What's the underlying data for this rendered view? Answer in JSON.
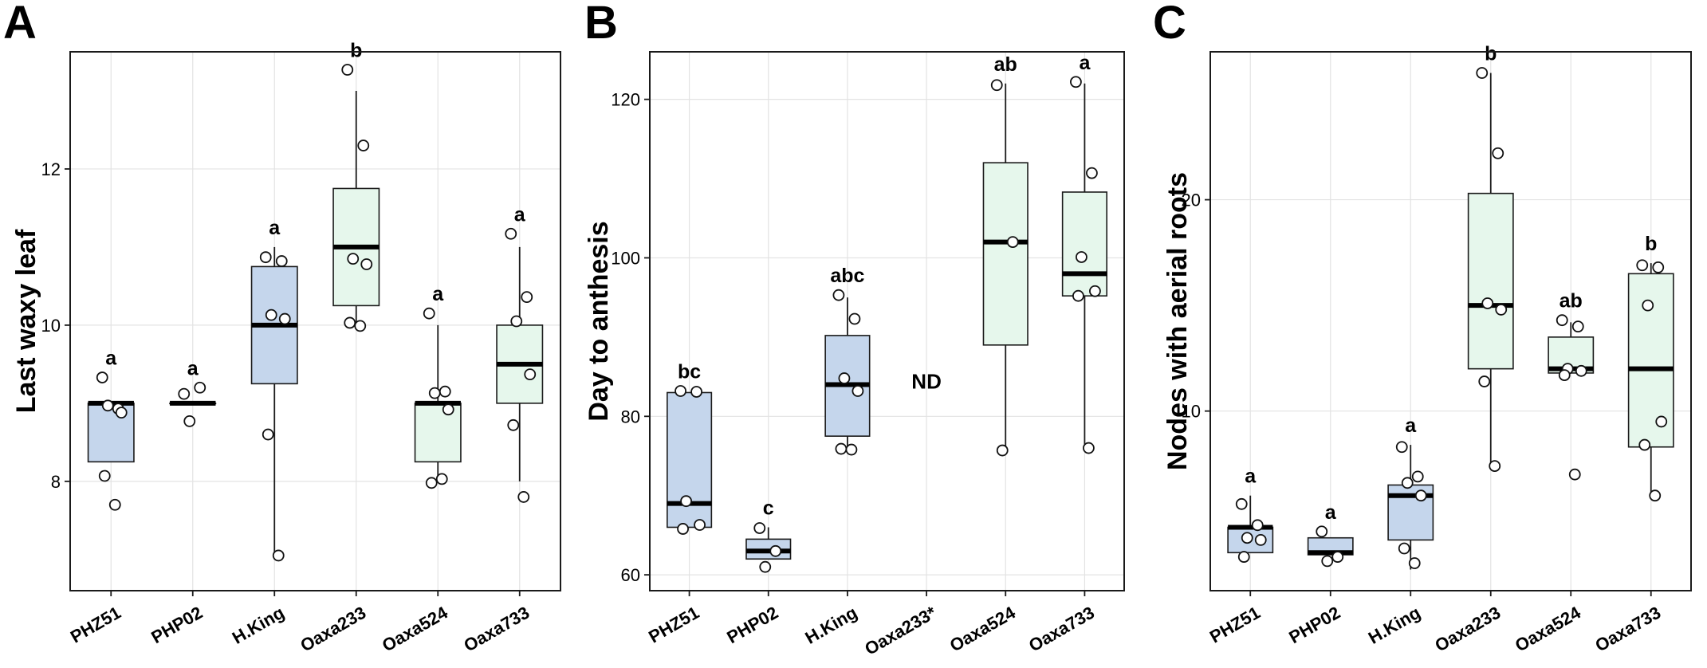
{
  "colors": {
    "blue_fill": "#c5d6ec",
    "green_fill": "#e6f7ec",
    "point_fill": "#ffffff"
  },
  "chart_data": [
    {
      "type": "box",
      "panel_label": "A",
      "title": "",
      "xlabel": "",
      "ylabel": "Last waxy leaf",
      "ylim": [
        6.6,
        13.5
      ],
      "yticks": [
        8,
        10,
        12
      ],
      "categories": [
        "PHZ51",
        "PHP02",
        "H.King",
        "Oaxa233",
        "Oaxa524",
        "Oaxa733"
      ],
      "groups": [
        {
          "name": "PHZ51",
          "fill": "blue",
          "q1": 8.25,
          "median": 9.0,
          "q3": 9.0,
          "whisker_low": 8.25,
          "whisker_high": 9.0,
          "letter": "a",
          "points": [
            9.33,
            8.93,
            8.97,
            8.88,
            8.07,
            7.7
          ]
        },
        {
          "name": "PHP02",
          "fill": "blue",
          "q1": 9.0,
          "median": 9.0,
          "q3": 9.0,
          "whisker_low": 9.0,
          "whisker_high": 9.0,
          "letter": "a",
          "points": [
            9.12,
            9.2,
            8.77
          ]
        },
        {
          "name": "H.King",
          "fill": "blue",
          "q1": 9.25,
          "median": 10.0,
          "q3": 10.75,
          "whisker_low": 7.0,
          "whisker_high": 11.0,
          "letter": "a",
          "points": [
            10.87,
            10.82,
            10.13,
            10.08,
            8.6,
            7.05
          ]
        },
        {
          "name": "Oaxa233",
          "fill": "green",
          "q1": 10.25,
          "median": 11.0,
          "q3": 11.75,
          "whisker_low": 10.0,
          "whisker_high": 13.0,
          "letter": "b",
          "points": [
            13.27,
            12.3,
            10.85,
            10.78,
            10.03,
            9.99
          ]
        },
        {
          "name": "Oaxa524",
          "fill": "green",
          "q1": 8.25,
          "median": 9.0,
          "q3": 9.0,
          "whisker_low": 8.0,
          "whisker_high": 10.0,
          "letter": "a",
          "points": [
            10.15,
            9.15,
            9.13,
            8.92,
            7.98,
            8.03
          ]
        },
        {
          "name": "Oaxa733",
          "fill": "green",
          "q1": 9.0,
          "median": 9.5,
          "q3": 10.0,
          "whisker_low": 8.0,
          "whisker_high": 11.0,
          "letter": "a",
          "points": [
            11.17,
            10.36,
            10.05,
            9.37,
            8.72,
            7.8
          ]
        }
      ]
    },
    {
      "type": "box",
      "panel_label": "B",
      "title": "",
      "xlabel": "",
      "ylabel": "Day to anthesis",
      "ylim": [
        58,
        126
      ],
      "yticks": [
        60,
        80,
        100,
        120
      ],
      "categories": [
        "PHZ51",
        "PHP02",
        "H.King",
        "Oaxa233*",
        "Oaxa524",
        "Oaxa733"
      ],
      "annotation": "ND",
      "groups": [
        {
          "name": "PHZ51",
          "fill": "blue",
          "q1": 66,
          "median": 69,
          "q3": 83,
          "whisker_low": 66,
          "whisker_high": 83,
          "letter": "bc",
          "points": [
            83.2,
            83.1,
            69.3,
            66.3,
            65.8
          ]
        },
        {
          "name": "PHP02",
          "fill": "blue",
          "q1": 62,
          "median": 63,
          "q3": 64.5,
          "whisker_low": 62,
          "whisker_high": 66,
          "letter": "c",
          "points": [
            65.9,
            63.0,
            61.0
          ]
        },
        {
          "name": "H.King",
          "fill": "blue",
          "q1": 77.5,
          "median": 84,
          "q3": 90.2,
          "whisker_low": 76,
          "whisker_high": 95,
          "letter": "abc",
          "points": [
            95.3,
            92.3,
            84.8,
            83.2,
            75.9,
            75.8
          ]
        },
        {
          "name": "Oaxa233*",
          "fill": "green",
          "letter": "",
          "points": []
        },
        {
          "name": "Oaxa524",
          "fill": "green",
          "q1": 89,
          "median": 102,
          "q3": 112,
          "whisker_low": 76,
          "whisker_high": 122,
          "letter": "ab",
          "points": [
            121.8,
            102.0,
            75.7
          ]
        },
        {
          "name": "Oaxa733",
          "fill": "green",
          "q1": 95.2,
          "median": 98,
          "q3": 108.3,
          "whisker_low": 76,
          "whisker_high": 122,
          "letter": "a",
          "points": [
            122.2,
            110.7,
            100.1,
            95.8,
            95.2,
            76.0
          ]
        }
      ]
    },
    {
      "type": "box",
      "panel_label": "C",
      "title": "",
      "xlabel": "",
      "ylabel": "Nodes with aerial roots",
      "ylim": [
        1.5,
        27
      ],
      "yticks": [
        10,
        20
      ],
      "categories": [
        "PHZ51",
        "PHP02",
        "H.King",
        "Oaxa233",
        "Oaxa524",
        "Oaxa733"
      ],
      "groups": [
        {
          "name": "PHZ51",
          "fill": "blue",
          "q1": 3.3,
          "median": 4.5,
          "q3": 4.5,
          "whisker_low": 3.3,
          "whisker_high": 6.0,
          "letter": "a",
          "points": [
            5.6,
            4.6,
            4.0,
            3.9,
            3.1
          ]
        },
        {
          "name": "PHP02",
          "fill": "blue",
          "q1": 3.2,
          "median": 3.3,
          "q3": 4.0,
          "whisker_low": 3.2,
          "whisker_high": 4.0,
          "letter": "a",
          "points": [
            4.3,
            3.1,
            2.9
          ]
        },
        {
          "name": "H.King",
          "fill": "blue",
          "q1": 3.9,
          "median": 6.0,
          "q3": 6.5,
          "whisker_low": 2.5,
          "whisker_high": 8.4,
          "letter": "a",
          "points": [
            8.3,
            6.9,
            6.6,
            6.0,
            3.5,
            2.8
          ]
        },
        {
          "name": "Oaxa233",
          "fill": "green",
          "q1": 12,
          "median": 15,
          "q3": 20.3,
          "whisker_low": 7.5,
          "whisker_high": 26,
          "letter": "b",
          "points": [
            26.0,
            22.2,
            15.1,
            14.8,
            11.4,
            7.4
          ]
        },
        {
          "name": "Oaxa524",
          "fill": "green",
          "q1": 11.8,
          "median": 12.0,
          "q3": 13.5,
          "whisker_low": 11.8,
          "whisker_high": 14.2,
          "letter": "ab",
          "points": [
            14.3,
            14.0,
            12.0,
            11.9,
            11.7,
            7.0
          ]
        },
        {
          "name": "Oaxa733",
          "fill": "green",
          "q1": 8.3,
          "median": 12.0,
          "q3": 16.5,
          "whisker_low": 6.0,
          "whisker_high": 17,
          "letter": "b",
          "points": [
            16.9,
            16.8,
            15.0,
            9.5,
            8.4,
            6.0
          ]
        }
      ]
    }
  ]
}
